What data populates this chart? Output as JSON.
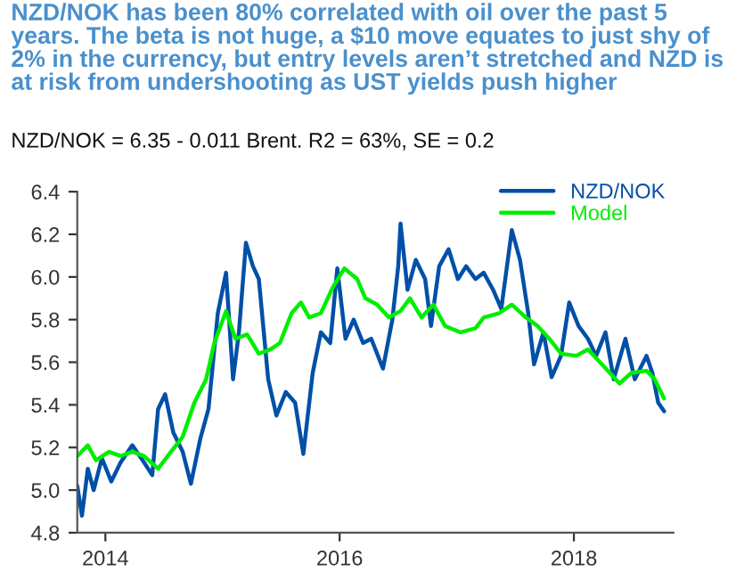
{
  "chart_data": {
    "type": "line",
    "title": "NZD/NOK has been 80% correlated with oil over the past 5  years. The beta is not huge, a $10 move equates to just shy of 2% in the currency, but entry levels aren’t stretched and NZD is at risk from undershooting as UST yields push higher",
    "subtitle": "NZD/NOK = 6.35 - 0.011 Brent. R2 = 63%, SE = 0.2",
    "series": [
      {
        "name": "NZD/NOK",
        "color": "#0050a8",
        "x": [
          2013.76,
          2013.8,
          2013.85,
          2013.9,
          2013.97,
          2014.05,
          2014.13,
          2014.23,
          2014.33,
          2014.4,
          2014.45,
          2014.51,
          2014.58,
          2014.66,
          2014.73,
          2014.81,
          2014.88,
          2014.96,
          2015.03,
          2015.09,
          2015.14,
          2015.2,
          2015.26,
          2015.31,
          2015.39,
          2015.46,
          2015.54,
          2015.62,
          2015.69,
          2015.77,
          2015.84,
          2015.92,
          2015.98,
          2016.05,
          2016.12,
          2016.2,
          2016.27,
          2016.37,
          2016.45,
          2016.5,
          2016.52,
          2016.58,
          2016.65,
          2016.73,
          2016.78,
          2016.85,
          2016.93,
          2017.01,
          2017.08,
          2017.16,
          2017.23,
          2017.31,
          2017.38,
          2017.47,
          2017.54,
          2017.61,
          2017.66,
          2017.74,
          2017.81,
          2017.89,
          2017.96,
          2018.04,
          2018.12,
          2018.19,
          2018.27,
          2018.34,
          2018.44,
          2018.52,
          2018.62,
          2018.67,
          2018.72,
          2018.77
        ],
        "values": [
          5.02,
          4.88,
          5.1,
          5.0,
          5.15,
          5.04,
          5.13,
          5.21,
          5.13,
          5.07,
          5.38,
          5.45,
          5.27,
          5.18,
          5.03,
          5.24,
          5.38,
          5.83,
          6.02,
          5.52,
          5.74,
          6.16,
          6.05,
          5.99,
          5.52,
          5.35,
          5.46,
          5.41,
          5.17,
          5.55,
          5.74,
          5.69,
          6.04,
          5.71,
          5.8,
          5.69,
          5.71,
          5.57,
          5.8,
          6.05,
          6.25,
          5.94,
          6.08,
          5.99,
          5.77,
          6.05,
          6.13,
          5.99,
          6.05,
          5.99,
          6.02,
          5.94,
          5.85,
          6.22,
          6.08,
          5.83,
          5.59,
          5.74,
          5.53,
          5.63,
          5.88,
          5.77,
          5.71,
          5.63,
          5.74,
          5.52,
          5.71,
          5.52,
          5.63,
          5.55,
          5.41,
          5.37
        ]
      },
      {
        "name": "Model",
        "color": "#00ee00",
        "x": [
          2013.76,
          2013.85,
          2013.92,
          2014.03,
          2014.13,
          2014.23,
          2014.33,
          2014.45,
          2014.56,
          2014.66,
          2014.76,
          2014.86,
          2014.93,
          2015.03,
          2015.11,
          2015.21,
          2015.31,
          2015.41,
          2015.49,
          2015.59,
          2015.67,
          2015.74,
          2015.84,
          2015.94,
          2016.04,
          2016.15,
          2016.22,
          2016.32,
          2016.42,
          2016.52,
          2016.6,
          2016.7,
          2016.8,
          2016.9,
          2017.03,
          2017.16,
          2017.23,
          2017.36,
          2017.47,
          2017.59,
          2017.69,
          2017.79,
          2017.89,
          2018.02,
          2018.12,
          2018.24,
          2018.39,
          2018.49,
          2018.62,
          2018.69,
          2018.77
        ],
        "values": [
          5.16,
          5.21,
          5.14,
          5.18,
          5.16,
          5.18,
          5.16,
          5.1,
          5.18,
          5.25,
          5.41,
          5.52,
          5.69,
          5.84,
          5.71,
          5.73,
          5.64,
          5.66,
          5.69,
          5.83,
          5.88,
          5.81,
          5.83,
          5.95,
          6.04,
          5.99,
          5.9,
          5.87,
          5.81,
          5.84,
          5.9,
          5.81,
          5.87,
          5.77,
          5.74,
          5.76,
          5.81,
          5.83,
          5.87,
          5.81,
          5.77,
          5.71,
          5.64,
          5.63,
          5.66,
          5.59,
          5.5,
          5.55,
          5.56,
          5.52,
          5.43
        ]
      }
    ],
    "xlim": [
      2013.76,
      2018.85
    ],
    "xticks": [
      2014,
      2016,
      2018
    ],
    "ylim": [
      4.8,
      6.4
    ],
    "yticks": [
      4.8,
      {
        "value": 5,
        "label": "5.0"
      },
      5.2,
      5.4,
      5.6,
      5.8,
      {
        "value": 6,
        "label": "6.0"
      },
      6.2,
      6.4
    ],
    "grid": false,
    "legend": "top right"
  }
}
